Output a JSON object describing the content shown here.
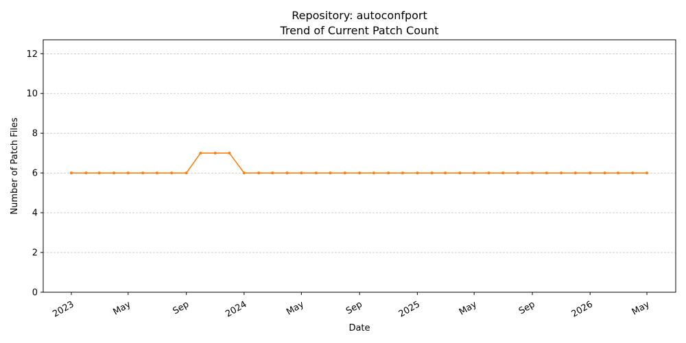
{
  "chart_data": {
    "type": "line",
    "title": "Repository: autoconfport",
    "subtitle": "Trend of Current Patch Count",
    "xlabel": "Date",
    "ylabel": "Number of Patch Files",
    "ylim": [
      0,
      12.7
    ],
    "yticks": [
      0,
      2,
      4,
      6,
      8,
      10,
      12
    ],
    "grid": "horizontal",
    "x_tick_labels": [
      {
        "date": "2023-01-01",
        "label": "2023"
      },
      {
        "date": "2023-05-01",
        "label": "May"
      },
      {
        "date": "2023-09-01",
        "label": "Sep"
      },
      {
        "date": "2024-01-01",
        "label": "2024"
      },
      {
        "date": "2024-05-01",
        "label": "May"
      },
      {
        "date": "2024-09-01",
        "label": "Sep"
      },
      {
        "date": "2025-01-01",
        "label": "2025"
      },
      {
        "date": "2025-05-01",
        "label": "May"
      },
      {
        "date": "2025-09-01",
        "label": "Sep"
      },
      {
        "date": "2026-01-01",
        "label": "2026"
      },
      {
        "date": "2026-05-01",
        "label": "May"
      }
    ],
    "series": [
      {
        "color": "#ff7f0e",
        "x": [
          "2023-01-01",
          "2023-02-01",
          "2023-03-01",
          "2023-04-01",
          "2023-05-01",
          "2023-06-01",
          "2023-07-01",
          "2023-08-01",
          "2023-09-01",
          "2023-10-01",
          "2023-11-01",
          "2023-12-01",
          "2024-01-01",
          "2024-02-01",
          "2024-03-01",
          "2024-04-01",
          "2024-05-01",
          "2024-06-01",
          "2024-07-01",
          "2024-08-01",
          "2024-09-01",
          "2024-10-01",
          "2024-11-01",
          "2024-12-01",
          "2025-01-01",
          "2025-02-01",
          "2025-03-01",
          "2025-04-01",
          "2025-05-01",
          "2025-06-01",
          "2025-07-01",
          "2025-08-01",
          "2025-09-01",
          "2025-10-01",
          "2025-11-01",
          "2025-12-01",
          "2026-01-01",
          "2026-02-01",
          "2026-03-01",
          "2026-04-01",
          "2026-05-01"
        ],
        "values": [
          6,
          6,
          6,
          6,
          6,
          6,
          6,
          6,
          6,
          7,
          7,
          7,
          6,
          6,
          6,
          6,
          6,
          6,
          6,
          6,
          6,
          6,
          6,
          6,
          6,
          6,
          6,
          6,
          6,
          6,
          6,
          6,
          6,
          6,
          6,
          6,
          6,
          6,
          6,
          6,
          6
        ]
      }
    ]
  }
}
